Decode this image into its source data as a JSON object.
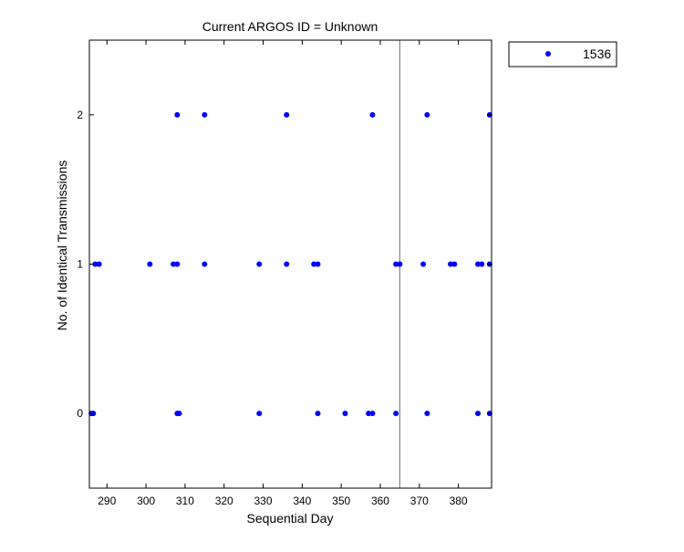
{
  "chart_data": {
    "type": "scatter",
    "title": "Current ARGOS ID = Unknown",
    "xlabel": "Sequential Day",
    "ylabel": "No. of Identical Transmissions",
    "xlim": [
      285.5,
      388.5
    ],
    "ylim": [
      -0.5,
      2.5
    ],
    "xticks": [
      290,
      300,
      310,
      320,
      330,
      340,
      350,
      360,
      370,
      380
    ],
    "yticks": [
      0,
      1,
      2
    ],
    "vline_x": 365,
    "grid": false,
    "legend_position": "outside top-right",
    "series": [
      {
        "name": "1536",
        "color": "#0000ff",
        "marker": "dot",
        "points": [
          [
            286,
            0
          ],
          [
            286.5,
            0
          ],
          [
            308,
            0
          ],
          [
            308.5,
            0
          ],
          [
            329,
            0
          ],
          [
            344,
            0
          ],
          [
            351,
            0
          ],
          [
            357,
            0
          ],
          [
            358,
            0
          ],
          [
            364,
            0
          ],
          [
            372,
            0
          ],
          [
            385,
            0
          ],
          [
            388,
            0
          ],
          [
            287,
            1
          ],
          [
            288,
            1
          ],
          [
            301,
            1
          ],
          [
            307,
            1
          ],
          [
            308,
            1
          ],
          [
            315,
            1
          ],
          [
            329,
            1
          ],
          [
            336,
            1
          ],
          [
            343,
            1
          ],
          [
            344,
            1
          ],
          [
            364,
            1
          ],
          [
            365,
            1
          ],
          [
            371,
            1
          ],
          [
            378,
            1
          ],
          [
            379,
            1
          ],
          [
            385,
            1
          ],
          [
            386,
            1
          ],
          [
            388,
            1
          ],
          [
            308,
            2
          ],
          [
            315,
            2
          ],
          [
            336,
            2
          ],
          [
            358,
            2
          ],
          [
            372,
            2
          ],
          [
            388,
            2
          ]
        ]
      }
    ],
    "colors": {
      "axis": "#000000",
      "vline": "#808080"
    }
  }
}
